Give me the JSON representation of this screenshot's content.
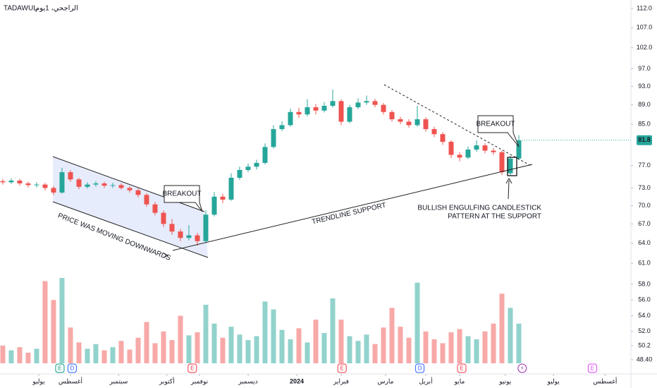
{
  "chart_data": {
    "type": "candlestick",
    "source": "TADAWUL",
    "title": "الراجحي، 1يوم",
    "log_scale": true,
    "up_color": "#26a69a",
    "down_color": "#ef5350",
    "xlim": [
      -0.33,
      74.25
    ],
    "xticks": [
      {
        "value": 4.25,
        "label": "يوليو"
      },
      {
        "value": 8,
        "label": "أغسطس"
      },
      {
        "value": 13.7,
        "label": "سبتمبر"
      },
      {
        "value": 19.4,
        "label": "أكتوبر"
      },
      {
        "value": 23.25,
        "label": "نوفمبر"
      },
      {
        "value": 29,
        "label": "ديسمبر"
      },
      {
        "value": 34.75,
        "label": "2024"
      },
      {
        "value": 40,
        "label": "فبراير"
      },
      {
        "value": 45.25,
        "label": "مارس"
      },
      {
        "value": 50,
        "label": "أبريل"
      },
      {
        "value": 54,
        "label": "مايو"
      },
      {
        "value": 59.4,
        "label": "يونيو"
      },
      {
        "value": 65.1,
        "label": "يوليو"
      },
      {
        "value": 71.2,
        "label": "أغسطس"
      }
    ],
    "ylim": [
      58.8,
      114.3
    ],
    "yticks": [
      {
        "value": 112,
        "label": "112.0"
      },
      {
        "value": 107,
        "label": "107.0"
      },
      {
        "value": 102,
        "label": "102.0"
      },
      {
        "value": 97,
        "label": "97.0"
      },
      {
        "value": 93,
        "label": "93.0"
      },
      {
        "value": 89,
        "label": "89.0"
      },
      {
        "value": 85,
        "label": "85.0"
      },
      {
        "value": 77,
        "label": "77.0"
      },
      {
        "value": 73,
        "label": "73.0"
      },
      {
        "value": 70,
        "label": "70.0"
      },
      {
        "value": 67,
        "label": "67.0"
      },
      {
        "value": 64,
        "label": "64.0"
      },
      {
        "value": 61,
        "label": "61.0"
      }
    ],
    "open": [
      74.2,
      74.0,
      74.3,
      73.8,
      73.5,
      73.6,
      73.0,
      72.2,
      75.8,
      74.5,
      73.2,
      73.6,
      73.8,
      73.4,
      73.5,
      73.0,
      72.6,
      71.8,
      70.2,
      68.8,
      67.0,
      65.8,
      64.8,
      65.2,
      64.3,
      68.5,
      71.5,
      71.0,
      74.8,
      76.2,
      76.8,
      77.5,
      80.5,
      84.0,
      84.8,
      87.5,
      87.0,
      88.5,
      87.8,
      88.8,
      89.8,
      85.5,
      88.5,
      89.5,
      89.8,
      89.0,
      87.5,
      86.0,
      85.5,
      84.8,
      86.0,
      84.0,
      83.0,
      81.5,
      79.0,
      78.5,
      80.0,
      80.8,
      79.8,
      79.5,
      75.6,
      78.3
    ],
    "high": [
      74.6,
      74.7,
      74.6,
      74.1,
      74.0,
      73.9,
      73.3,
      76.6,
      76.2,
      74.8,
      74.0,
      74.2,
      74.1,
      73.9,
      73.8,
      73.3,
      72.9,
      72.1,
      70.6,
      69.2,
      67.8,
      66.2,
      66.8,
      65.6,
      69.2,
      72.3,
      72.0,
      75.6,
      76.8,
      77.4,
      78.1,
      81.2,
      84.8,
      85.6,
      88.2,
      88.4,
      90.2,
      89.2,
      89.6,
      92.3,
      90.2,
      89.0,
      90.4,
      91.0,
      90.3,
      89.4,
      87.9,
      86.5,
      86.0,
      88.8,
      86.4,
      84.5,
      83.4,
      81.8,
      79.5,
      80.6,
      81.8,
      81.2,
      80.3,
      79.8,
      78.8,
      82.8
    ],
    "low": [
      73.6,
      73.7,
      73.4,
      73.1,
      73.1,
      72.6,
      71.8,
      72.0,
      74.1,
      72.8,
      72.9,
      73.2,
      73.0,
      73.0,
      72.7,
      72.2,
      71.4,
      69.8,
      68.4,
      66.5,
      65.3,
      64.3,
      64.4,
      63.6,
      64.0,
      68.2,
      70.4,
      70.8,
      74.4,
      75.8,
      76.3,
      77.2,
      80.2,
      83.6,
      84.5,
      86.3,
      86.6,
      87.0,
      87.4,
      88.4,
      84.8,
      85.2,
      88.1,
      89.0,
      88.5,
      87.0,
      85.5,
      85.0,
      84.3,
      84.5,
      83.5,
      82.4,
      80.9,
      78.4,
      77.8,
      78.2,
      79.6,
      79.3,
      79.0,
      75.3,
      75.2,
      78.0
    ],
    "close": [
      74.0,
      74.3,
      73.8,
      73.5,
      73.6,
      73.0,
      72.2,
      75.8,
      74.5,
      73.2,
      73.6,
      73.8,
      73.4,
      73.5,
      73.0,
      72.6,
      71.8,
      70.2,
      68.8,
      67.0,
      65.8,
      64.8,
      65.2,
      64.3,
      68.5,
      71.5,
      71.0,
      74.8,
      76.2,
      76.8,
      77.5,
      80.5,
      84.0,
      84.8,
      87.5,
      87.0,
      88.5,
      87.8,
      88.8,
      89.8,
      85.5,
      88.5,
      89.5,
      89.8,
      89.0,
      87.5,
      86.0,
      85.5,
      84.8,
      86.0,
      84.0,
      83.0,
      81.5,
      79.0,
      78.5,
      80.0,
      80.8,
      79.8,
      79.5,
      75.8,
      78.3,
      81.8
    ],
    "volume": {
      "ylim": [
        47.95,
        58.8
      ],
      "yticks": [
        {
          "value": 58,
          "label": "58.0"
        },
        {
          "value": 56,
          "label": "56.0"
        },
        {
          "value": 54,
          "label": "54.0"
        },
        {
          "value": 52,
          "label": "52.0"
        },
        {
          "value": 50.2,
          "label": "50.2"
        },
        {
          "value": 48.4,
          "label": "48.40"
        }
      ],
      "values": [
        50.2,
        49.6,
        50.0,
        49.3,
        49.8,
        58.4,
        56.0,
        58.8,
        52.5,
        50.6,
        49.8,
        50.4,
        49.6,
        50.0,
        50.8,
        49.7,
        51.2,
        53.2,
        50.5,
        52.0,
        50.9,
        54.0,
        51.5,
        51.9,
        55.4,
        53.0,
        51.2,
        52.6,
        51.6,
        50.9,
        51.4,
        55.8,
        54.8,
        52.2,
        51.0,
        52.4,
        50.6,
        53.5,
        51.8,
        56.2,
        53.5,
        51.4,
        50.8,
        51.6,
        50.4,
        52.5,
        55.0,
        52.6,
        51.2,
        58.2,
        52.0,
        51.0,
        50.5,
        51.9,
        52.3,
        51.4,
        51.0,
        52.0,
        53.0,
        56.8,
        55.0,
        53.0
      ]
    },
    "events": [
      {
        "x": 6.75,
        "label": "E",
        "color": "#089981"
      },
      {
        "x": 8.2,
        "label": "D",
        "color": "#2962ff"
      },
      {
        "x": 22.4,
        "label": "E",
        "color": "#f23645"
      },
      {
        "x": 40.1,
        "label": "E",
        "color": "#f23645"
      },
      {
        "x": 49.3,
        "label": "D",
        "color": "#2962ff"
      },
      {
        "x": 54.25,
        "label": "E",
        "color": "#f23645"
      },
      {
        "x": 61.4,
        "label": "⚡",
        "color": "#9c27b0"
      },
      {
        "x": 69.7,
        "label": "E",
        "color": "#e040fb"
      }
    ],
    "annotations": [
      "BREAKOUT",
      "PRICE WAS MOVING DOWNWARDS",
      "TRENDLINE SUPPORT",
      "BREAKOUT",
      "BULLISH ENGULFING CANDLESTICK",
      "PATTERN AT THE SUPPORT"
    ]
  }
}
